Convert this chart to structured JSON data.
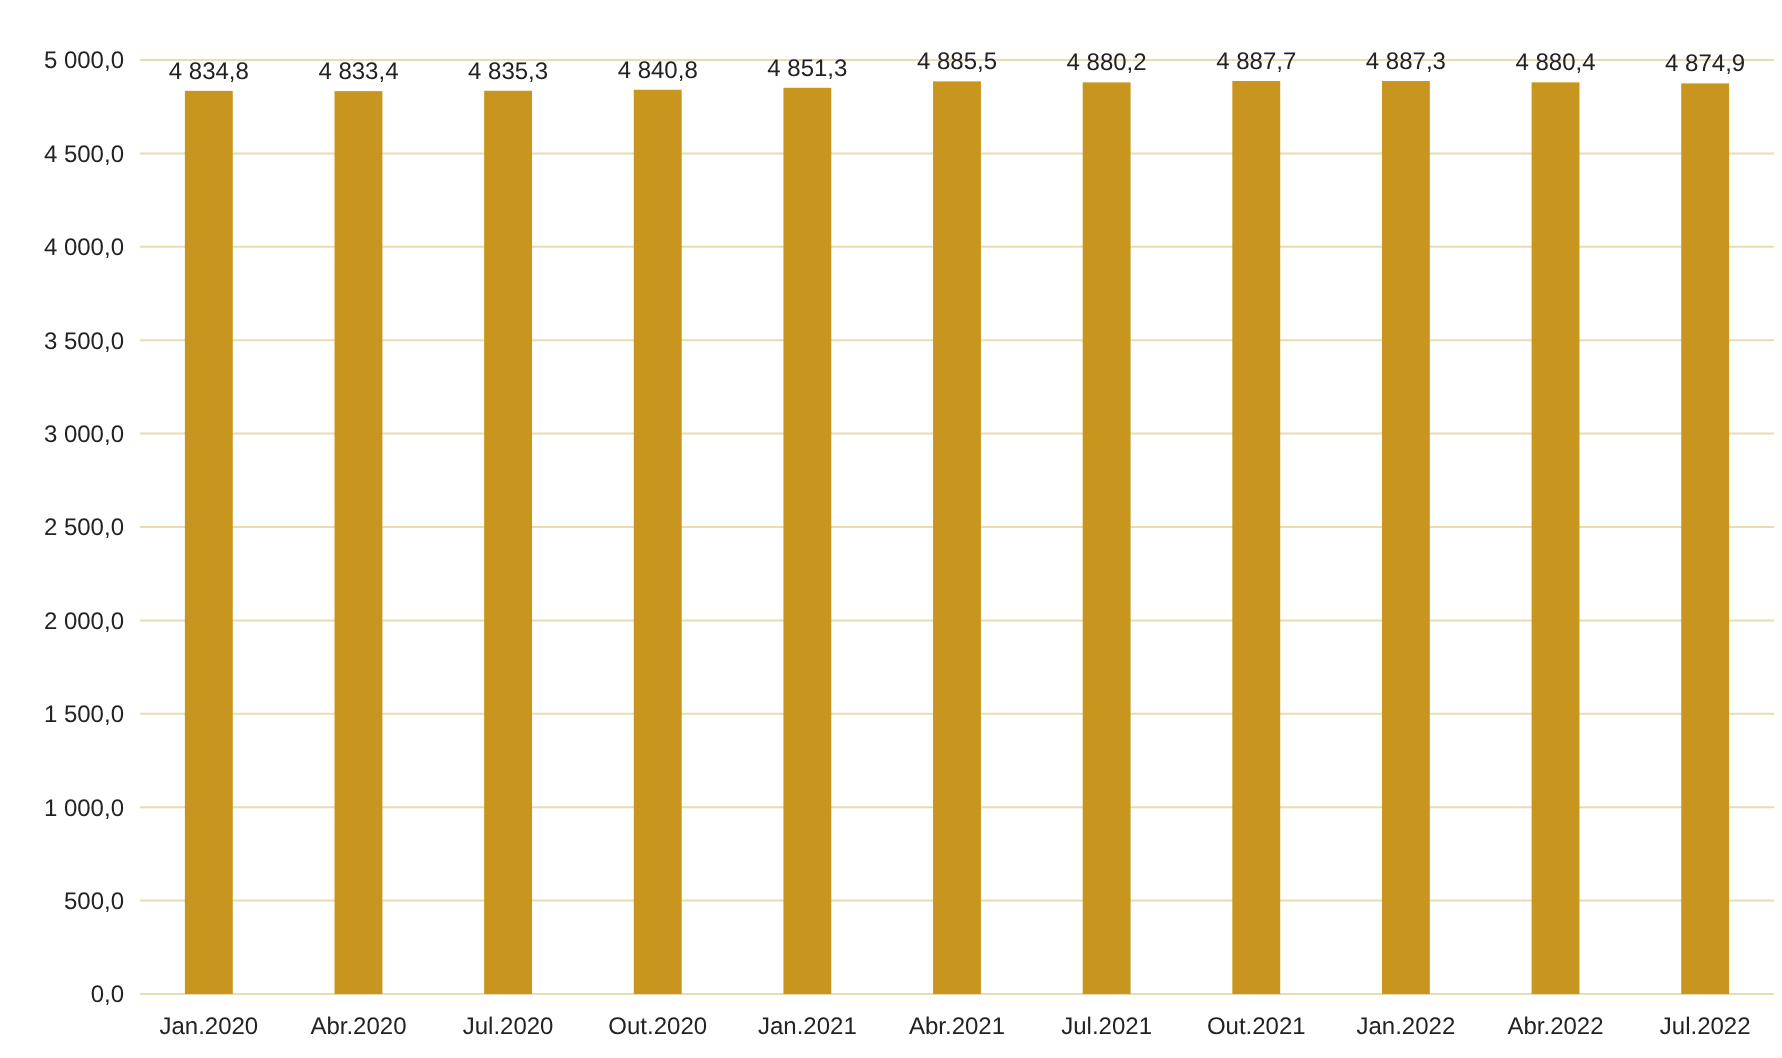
{
  "chart_data": {
    "type": "bar",
    "categories": [
      "Jan.2020",
      "Abr.2020",
      "Jul.2020",
      "Out.2020",
      "Jan.2021",
      "Abr.2021",
      "Jul.2021",
      "Out.2021",
      "Jan.2022",
      "Abr.2022",
      "Jul.2022"
    ],
    "values": [
      4834.8,
      4833.4,
      4835.3,
      4840.8,
      4851.3,
      4885.5,
      4880.2,
      4887.7,
      4887.3,
      4880.4,
      4874.9
    ],
    "value_labels": [
      "4 834,8",
      "4 833,4",
      "4 835,3",
      "4 840,8",
      "4 851,3",
      "4 885,5",
      "4 880,2",
      "4 887,7",
      "4 887,3",
      "4 880,4",
      "4 874,9"
    ],
    "color": "#c8961e",
    "ylim": [
      0,
      5000
    ],
    "yticks": [
      {
        "value": 0,
        "label": "0,0"
      },
      {
        "value": 500,
        "label": "500,0"
      },
      {
        "value": 1000,
        "label": "1 000,0"
      },
      {
        "value": 1500,
        "label": "1 500,0"
      },
      {
        "value": 2000,
        "label": "2 000,0"
      },
      {
        "value": 2500,
        "label": "2 500,0"
      },
      {
        "value": 3000,
        "label": "3 000,0"
      },
      {
        "value": 3500,
        "label": "3 500,0"
      },
      {
        "value": 4000,
        "label": "4 000,0"
      },
      {
        "value": 4500,
        "label": "4 500,0"
      },
      {
        "value": 5000,
        "label": "5 000,0"
      }
    ],
    "grid": "y"
  }
}
